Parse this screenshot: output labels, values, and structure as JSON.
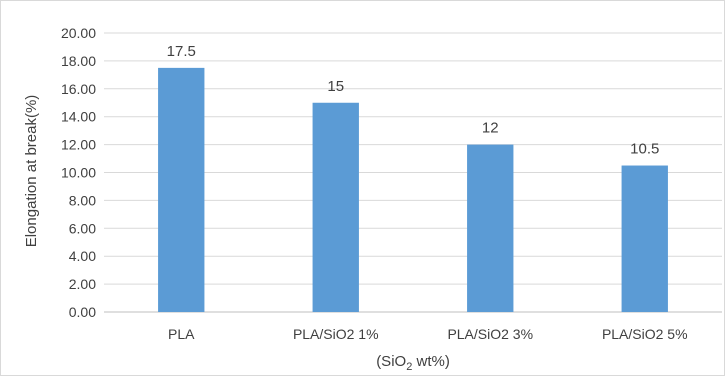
{
  "chart_data": {
    "type": "bar",
    "categories": [
      "PLA",
      "PLA/SiO2 1%",
      "PLA/SiO2 3%",
      "PLA/SiO2 5%"
    ],
    "values": [
      17.5,
      15,
      12,
      10.5
    ],
    "data_labels": [
      "17.5",
      "15",
      "12",
      "10.5"
    ],
    "title": "",
    "xlabel": {
      "main": "(SiO",
      "sub": "2",
      "tail": " wt%)"
    },
    "ylabel": "Elongation at break(%)",
    "ylim": [
      0,
      20
    ],
    "yticks": [
      0,
      2,
      4,
      6,
      8,
      10,
      12,
      14,
      16,
      18,
      20
    ],
    "ytick_labels": [
      "0.00",
      "2.00",
      "4.00",
      "6.00",
      "8.00",
      "10.00",
      "12.00",
      "14.00",
      "16.00",
      "18.00",
      "20.00"
    ],
    "grid": "horizontal",
    "legend": "none",
    "bar_color": "#5B9BD5",
    "grid_color": "#D9D9D9",
    "axis_color": "#BFBFBF",
    "text_color": "#404040",
    "border_color": "#D9D9D9"
  }
}
